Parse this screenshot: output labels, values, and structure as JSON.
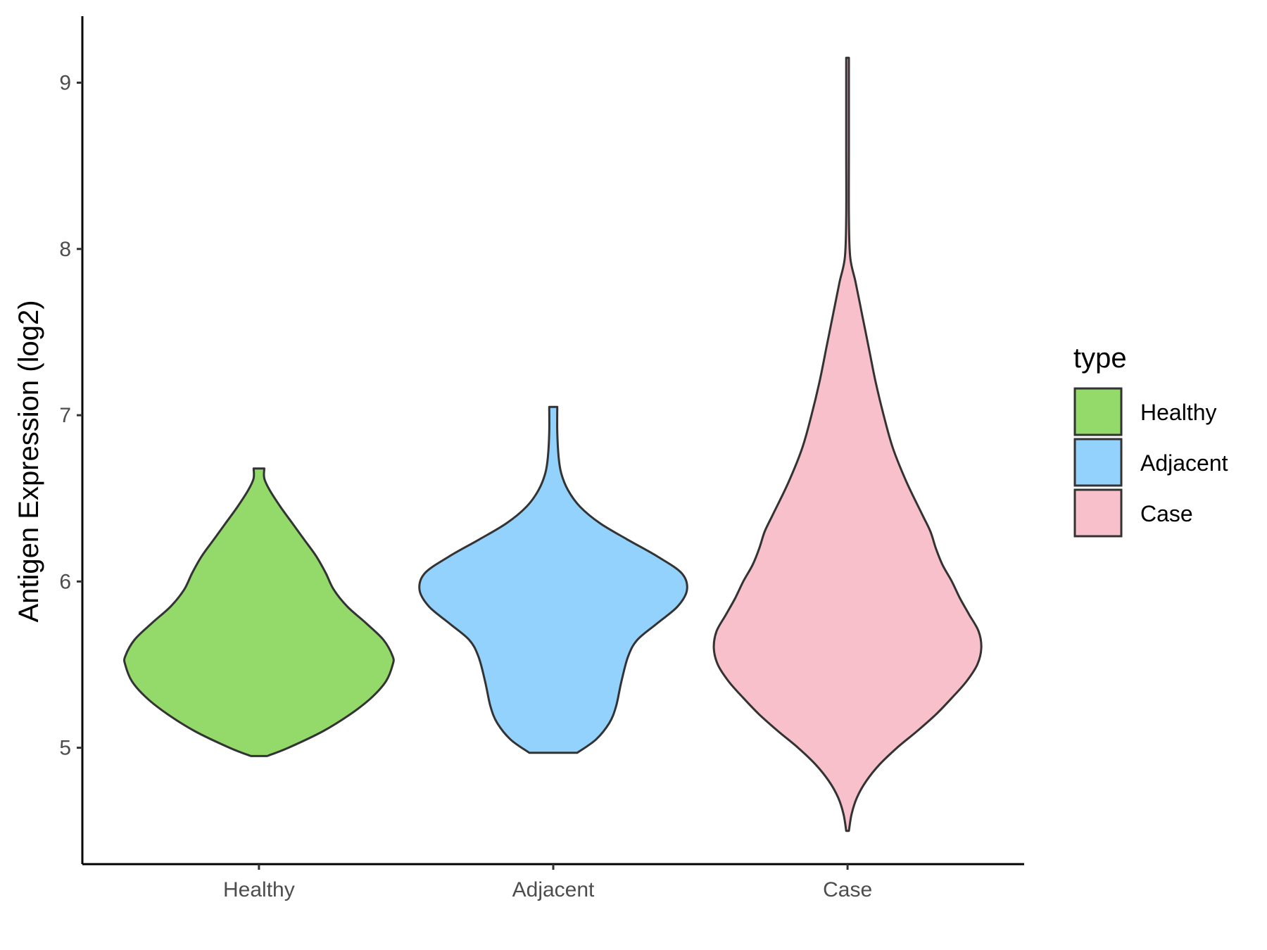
{
  "chart_data": {
    "type": "violin",
    "title": "",
    "xlabel": "",
    "ylabel": "Antigen Expression (log2)",
    "ylim": [
      4.3,
      9.4
    ],
    "yticks": [
      5,
      6,
      7,
      8,
      9
    ],
    "categories": [
      "Healthy",
      "Adjacent",
      "Case"
    ],
    "grid": false,
    "legend": {
      "title": "type",
      "placement": "right",
      "entries": [
        "Healthy",
        "Adjacent",
        "Case"
      ]
    },
    "series": [
      {
        "category": "Healthy",
        "color": "#93da6a",
        "density": [
          [
            4.95,
            0.06
          ],
          [
            5.0,
            0.22
          ],
          [
            5.1,
            0.48
          ],
          [
            5.2,
            0.68
          ],
          [
            5.3,
            0.84
          ],
          [
            5.4,
            0.95
          ],
          [
            5.5,
            1.0
          ],
          [
            5.55,
            1.0
          ],
          [
            5.65,
            0.93
          ],
          [
            5.75,
            0.8
          ],
          [
            5.85,
            0.66
          ],
          [
            5.95,
            0.56
          ],
          [
            6.05,
            0.5
          ],
          [
            6.15,
            0.43
          ],
          [
            6.25,
            0.34
          ],
          [
            6.35,
            0.25
          ],
          [
            6.45,
            0.16
          ],
          [
            6.55,
            0.08
          ],
          [
            6.62,
            0.04
          ],
          [
            6.68,
            0.04
          ]
        ]
      },
      {
        "category": "Adjacent",
        "color": "#93d2fd",
        "density": [
          [
            4.97,
            0.18
          ],
          [
            5.05,
            0.32
          ],
          [
            5.15,
            0.42
          ],
          [
            5.25,
            0.47
          ],
          [
            5.4,
            0.51
          ],
          [
            5.55,
            0.56
          ],
          [
            5.65,
            0.63
          ],
          [
            5.75,
            0.78
          ],
          [
            5.85,
            0.93
          ],
          [
            5.95,
            1.0
          ],
          [
            6.05,
            0.96
          ],
          [
            6.15,
            0.78
          ],
          [
            6.25,
            0.56
          ],
          [
            6.35,
            0.35
          ],
          [
            6.45,
            0.2
          ],
          [
            6.55,
            0.11
          ],
          [
            6.65,
            0.06
          ],
          [
            6.75,
            0.04
          ],
          [
            6.9,
            0.03
          ],
          [
            7.05,
            0.03
          ]
        ]
      },
      {
        "category": "Case",
        "color": "#f8c0cb",
        "density": [
          [
            4.5,
            0.01
          ],
          [
            4.6,
            0.03
          ],
          [
            4.7,
            0.07
          ],
          [
            4.8,
            0.14
          ],
          [
            4.9,
            0.24
          ],
          [
            5.0,
            0.37
          ],
          [
            5.1,
            0.52
          ],
          [
            5.2,
            0.66
          ],
          [
            5.3,
            0.78
          ],
          [
            5.4,
            0.89
          ],
          [
            5.5,
            0.97
          ],
          [
            5.6,
            1.0
          ],
          [
            5.7,
            0.98
          ],
          [
            5.8,
            0.91
          ],
          [
            5.9,
            0.84
          ],
          [
            6.0,
            0.78
          ],
          [
            6.1,
            0.71
          ],
          [
            6.2,
            0.66
          ],
          [
            6.3,
            0.62
          ],
          [
            6.4,
            0.56
          ],
          [
            6.6,
            0.44
          ],
          [
            6.8,
            0.34
          ],
          [
            7.0,
            0.27
          ],
          [
            7.2,
            0.21
          ],
          [
            7.4,
            0.16
          ],
          [
            7.6,
            0.11
          ],
          [
            7.8,
            0.06
          ],
          [
            7.95,
            0.02
          ],
          [
            8.2,
            0.01
          ],
          [
            8.6,
            0.01
          ],
          [
            9.0,
            0.01
          ],
          [
            9.15,
            0.01
          ]
        ]
      }
    ]
  }
}
